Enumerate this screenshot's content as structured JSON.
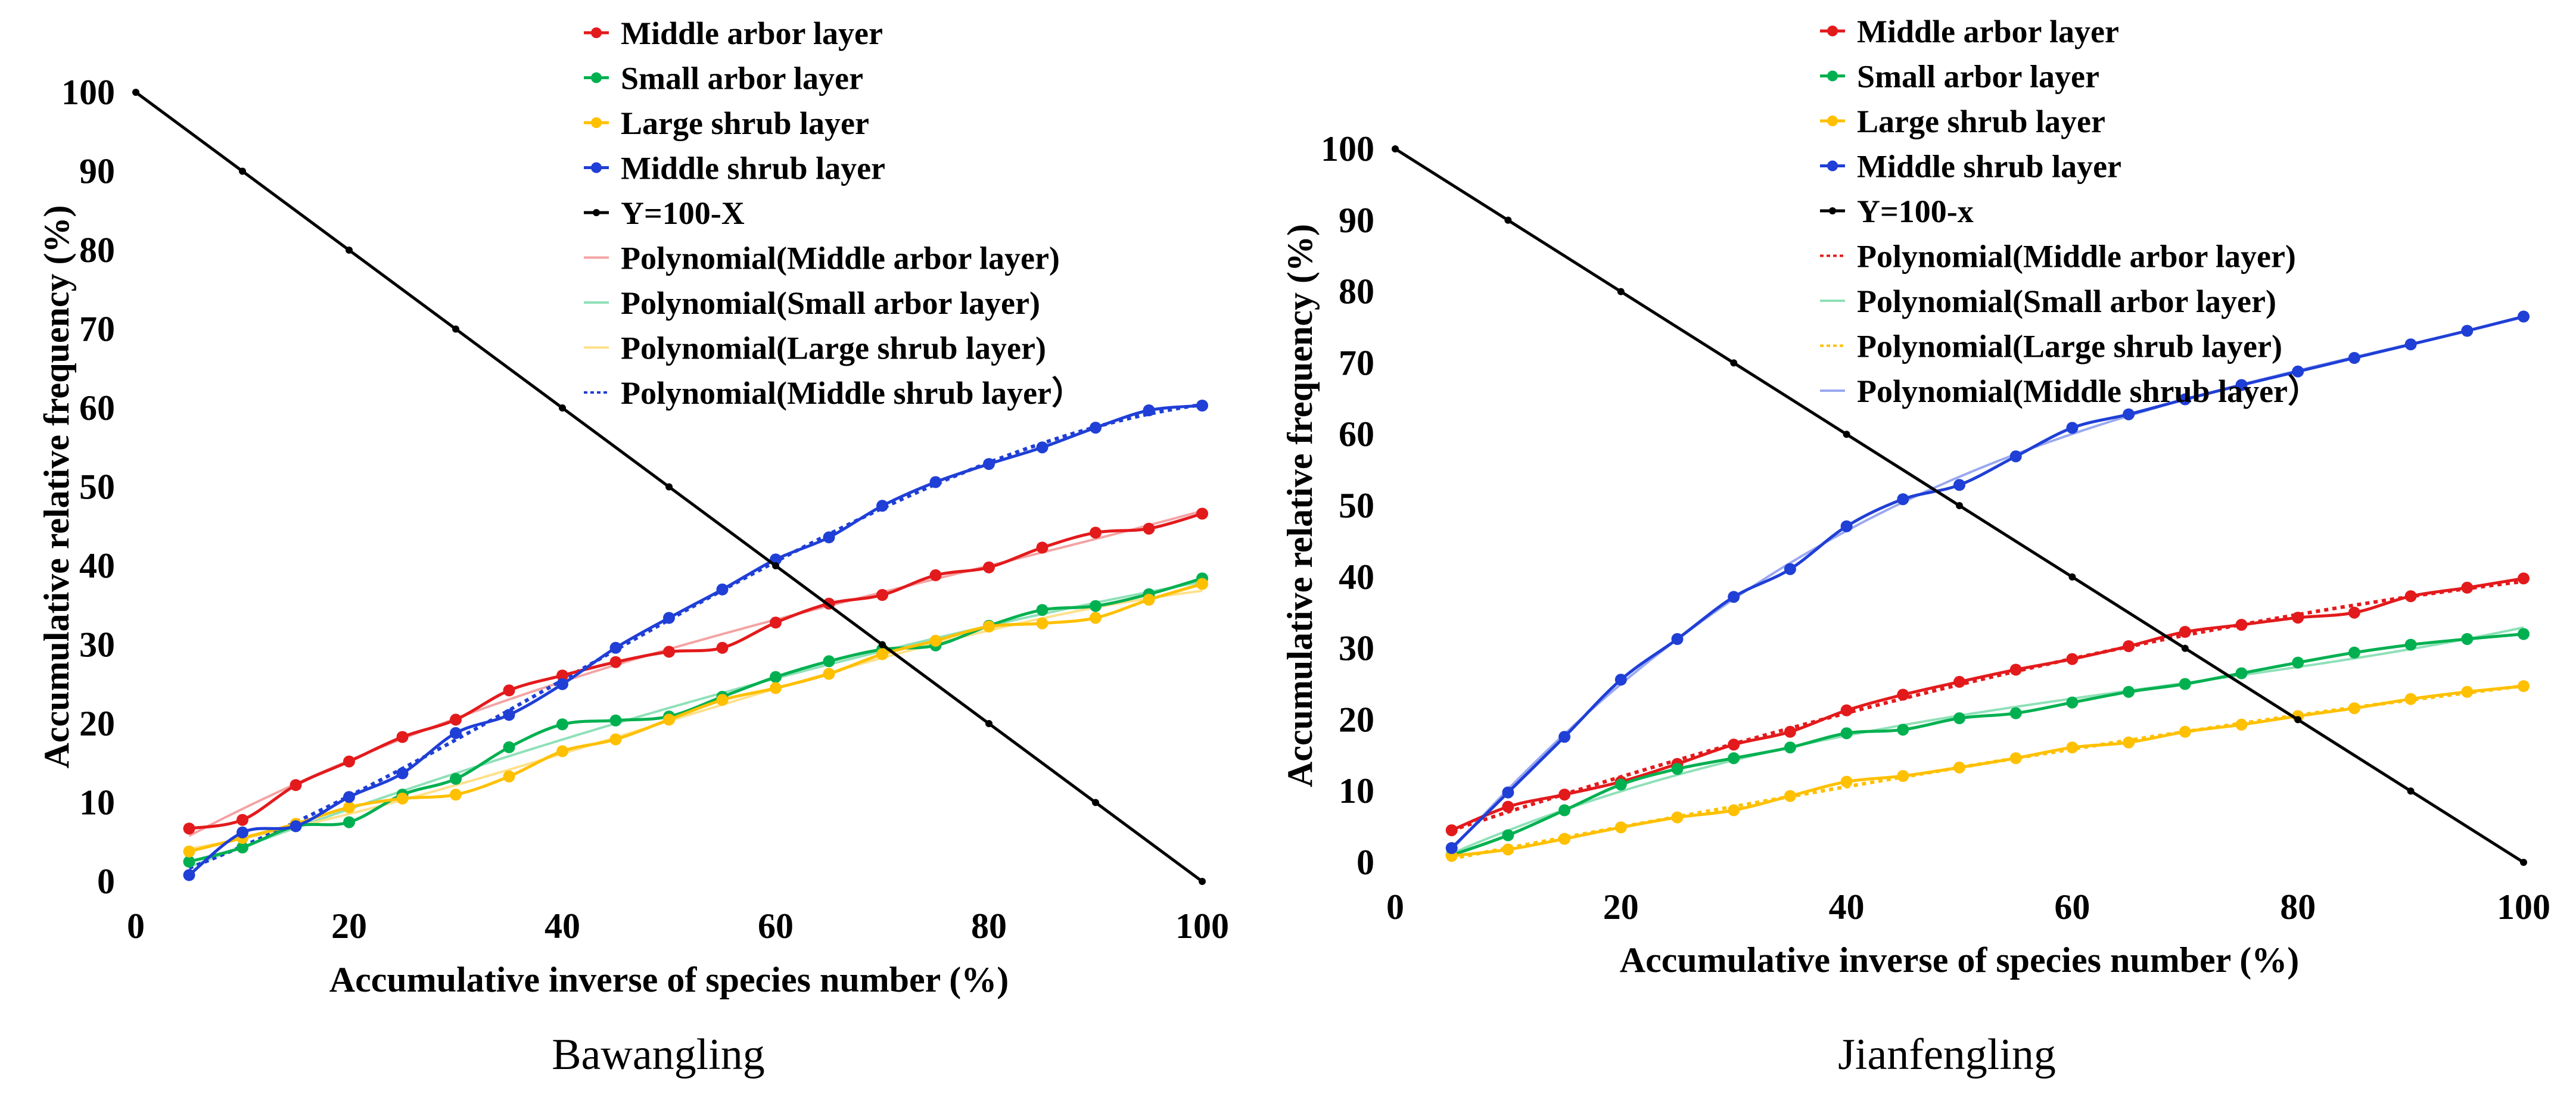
{
  "colors": {
    "middle_arbor": "#e31a1c",
    "small_arbor": "#00b050",
    "large_shrub": "#ffc000",
    "middle_shrub": "#1f3fd6",
    "diagonal": "#000000",
    "middle_arbor_fit": "#f4a3a3",
    "small_arbor_fit": "#8fe0b8",
    "large_shrub_fit": "#ffe08a",
    "middle_shrub_fit": "#9aa8f0"
  },
  "chart_data": [
    {
      "type": "line",
      "caption": "Bawangling",
      "xlabel": "Accumulative inverse of species number (%)",
      "ylabel": "Accumulative relative frequency (%)",
      "xlim": [
        0,
        100
      ],
      "ylim": [
        0,
        100
      ],
      "xticks": [
        "0",
        "20",
        "40",
        "60",
        "80",
        "100"
      ],
      "yticks": [
        "0",
        "10",
        "20",
        "30",
        "40",
        "50",
        "60",
        "70",
        "80",
        "90",
        "100"
      ],
      "x": [
        5,
        10,
        15,
        20,
        25,
        30,
        35,
        40,
        45,
        50,
        55,
        60,
        65,
        70,
        75,
        80,
        85,
        90,
        95,
        100
      ],
      "series": [
        {
          "key": "middle_arbor",
          "name": "Middle arbor layer",
          "values": [
            6.7,
            7.8,
            12.2,
            15.2,
            18.3,
            20.5,
            24.2,
            26.1,
            27.8,
            29.1,
            29.6,
            32.8,
            35.2,
            36.3,
            38.8,
            39.8,
            42.3,
            44.2,
            44.7,
            46.6
          ]
        },
        {
          "key": "small_arbor",
          "name": "Small arbor layer",
          "values": [
            2.5,
            4.3,
            7.0,
            7.5,
            11.0,
            13.0,
            17.0,
            19.9,
            20.4,
            20.9,
            23.4,
            25.9,
            27.9,
            29.4,
            29.9,
            32.4,
            34.4,
            34.9,
            36.4,
            38.4
          ]
        },
        {
          "key": "large_shrub",
          "name": "Large shrub layer",
          "values": [
            3.8,
            5.5,
            7.3,
            9.4,
            10.5,
            11.0,
            13.3,
            16.5,
            18.0,
            20.5,
            23.0,
            24.5,
            26.3,
            28.8,
            30.5,
            32.3,
            32.7,
            33.4,
            35.7,
            37.7
          ]
        },
        {
          "key": "middle_shrub",
          "name": "Middle shrub layer",
          "values": [
            0.8,
            6.2,
            7.0,
            10.7,
            13.7,
            18.8,
            21.1,
            25.0,
            29.6,
            33.4,
            37.0,
            40.8,
            43.6,
            47.6,
            50.6,
            52.9,
            55.0,
            57.5,
            59.7,
            60.3
          ]
        },
        {
          "key": "diagonal",
          "name": "Y=100-X",
          "values": [
            100,
            90,
            80,
            70,
            60,
            50,
            40,
            30,
            20,
            10,
            0
          ],
          "x": [
            0,
            10,
            20,
            30,
            40,
            50,
            60,
            70,
            80,
            90,
            100
          ]
        }
      ],
      "trendlines": [
        {
          "key": "middle_arbor_fit",
          "name": "Polynomial(Middle arbor layer)",
          "style": "solid"
        },
        {
          "key": "small_arbor_fit",
          "name": "Polynomial(Small arbor layer)",
          "style": "solid"
        },
        {
          "key": "large_shrub_fit",
          "name": "Polynomial(Large shrub layer)",
          "style": "solid"
        },
        {
          "key": "middle_shrub_fit",
          "name": "Polynomial(Middle shrub layer）",
          "style": "dotted"
        }
      ]
    },
    {
      "type": "line",
      "caption": "Jianfengling",
      "xlabel": "Accumulative inverse of species number (%)",
      "ylabel": "Accumulative relative frequency (%)",
      "xlim": [
        0,
        100
      ],
      "ylim": [
        0,
        100
      ],
      "xticks": [
        "0",
        "20",
        "40",
        "60",
        "80",
        "100"
      ],
      "yticks": [
        "0",
        "10",
        "20",
        "30",
        "40",
        "50",
        "60",
        "70",
        "80",
        "90",
        "100"
      ],
      "x": [
        5,
        10,
        15,
        20,
        25,
        30,
        35,
        40,
        45,
        50,
        55,
        60,
        65,
        70,
        75,
        80,
        85,
        90,
        95,
        100
      ],
      "series": [
        {
          "key": "middle_arbor",
          "name": "Middle arbor layer",
          "values": [
            4.5,
            7.8,
            9.5,
            11.3,
            13.8,
            16.5,
            18.3,
            21.3,
            23.5,
            25.3,
            27.0,
            28.5,
            30.3,
            32.3,
            33.3,
            34.3,
            35.0,
            37.3,
            38.5,
            39.8
          ]
        },
        {
          "key": "small_arbor",
          "name": "Small arbor layer",
          "values": [
            1.0,
            3.8,
            7.3,
            10.9,
            13.1,
            14.6,
            16.1,
            18.1,
            18.6,
            20.2,
            20.9,
            22.4,
            23.9,
            25.0,
            26.5,
            28.0,
            29.4,
            30.5,
            31.3,
            32.0
          ]
        },
        {
          "key": "large_shrub",
          "name": "Large shrub layer",
          "values": [
            0.9,
            1.8,
            3.3,
            4.9,
            6.3,
            7.3,
            9.3,
            11.3,
            12.1,
            13.3,
            14.6,
            16.1,
            16.8,
            18.3,
            19.3,
            20.5,
            21.6,
            22.9,
            23.9,
            24.7
          ]
        },
        {
          "key": "middle_shrub",
          "name": "Middle shrub layer",
          "values": [
            2.0,
            9.8,
            17.6,
            25.6,
            31.3,
            37.2,
            41.1,
            47.1,
            50.9,
            52.9,
            56.9,
            60.9,
            62.8,
            64.9,
            66.9,
            68.8,
            70.7,
            72.6,
            74.5,
            76.5
          ]
        },
        {
          "key": "diagonal",
          "name": "Y=100-x",
          "values": [
            100,
            90,
            80,
            70,
            60,
            50,
            40,
            30,
            20,
            10,
            0
          ],
          "x": [
            0,
            10,
            20,
            30,
            40,
            50,
            60,
            70,
            80,
            90,
            100
          ]
        }
      ],
      "trendlines": [
        {
          "key": "middle_arbor_fit",
          "name": "Polynomial(Middle arbor layer)",
          "style": "dotted"
        },
        {
          "key": "small_arbor_fit",
          "name": "Polynomial(Small arbor layer)",
          "style": "solid"
        },
        {
          "key": "large_shrub_fit",
          "name": "Polynomial(Large shrub layer)",
          "style": "dotted"
        },
        {
          "key": "middle_shrub_fit",
          "name": "Polynomial(Middle shrub layer）",
          "style": "solid"
        }
      ]
    }
  ]
}
